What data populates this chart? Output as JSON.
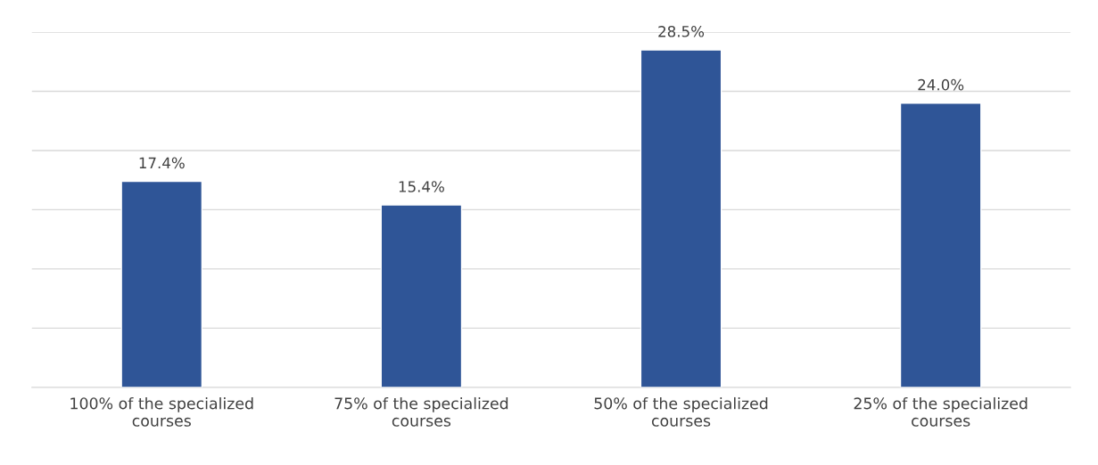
{
  "chart_data": {
    "type": "bar",
    "categories": [
      "100% of the specialized\ncourses",
      "75% of the specialized\ncourses",
      "50% of the specialized\ncourses",
      "25% of the specialized\ncourses"
    ],
    "values": [
      17.4,
      15.4,
      28.5,
      24.0
    ],
    "value_labels": [
      "17.4%",
      "15.4%",
      "28.5%",
      "24.0%"
    ],
    "color": "#2f5597",
    "ylim": [
      0,
      30
    ],
    "yticks": [
      {
        "value": 0,
        "label": null
      },
      {
        "value": 5,
        "label": null
      },
      {
        "value": 10,
        "label": null
      },
      {
        "value": 15,
        "label": null
      },
      {
        "value": 20,
        "label": null
      },
      {
        "value": 25,
        "label": null
      },
      {
        "value": 30,
        "label": null
      }
    ],
    "tick_labels": "x",
    "grid": "y",
    "legend": false
  }
}
